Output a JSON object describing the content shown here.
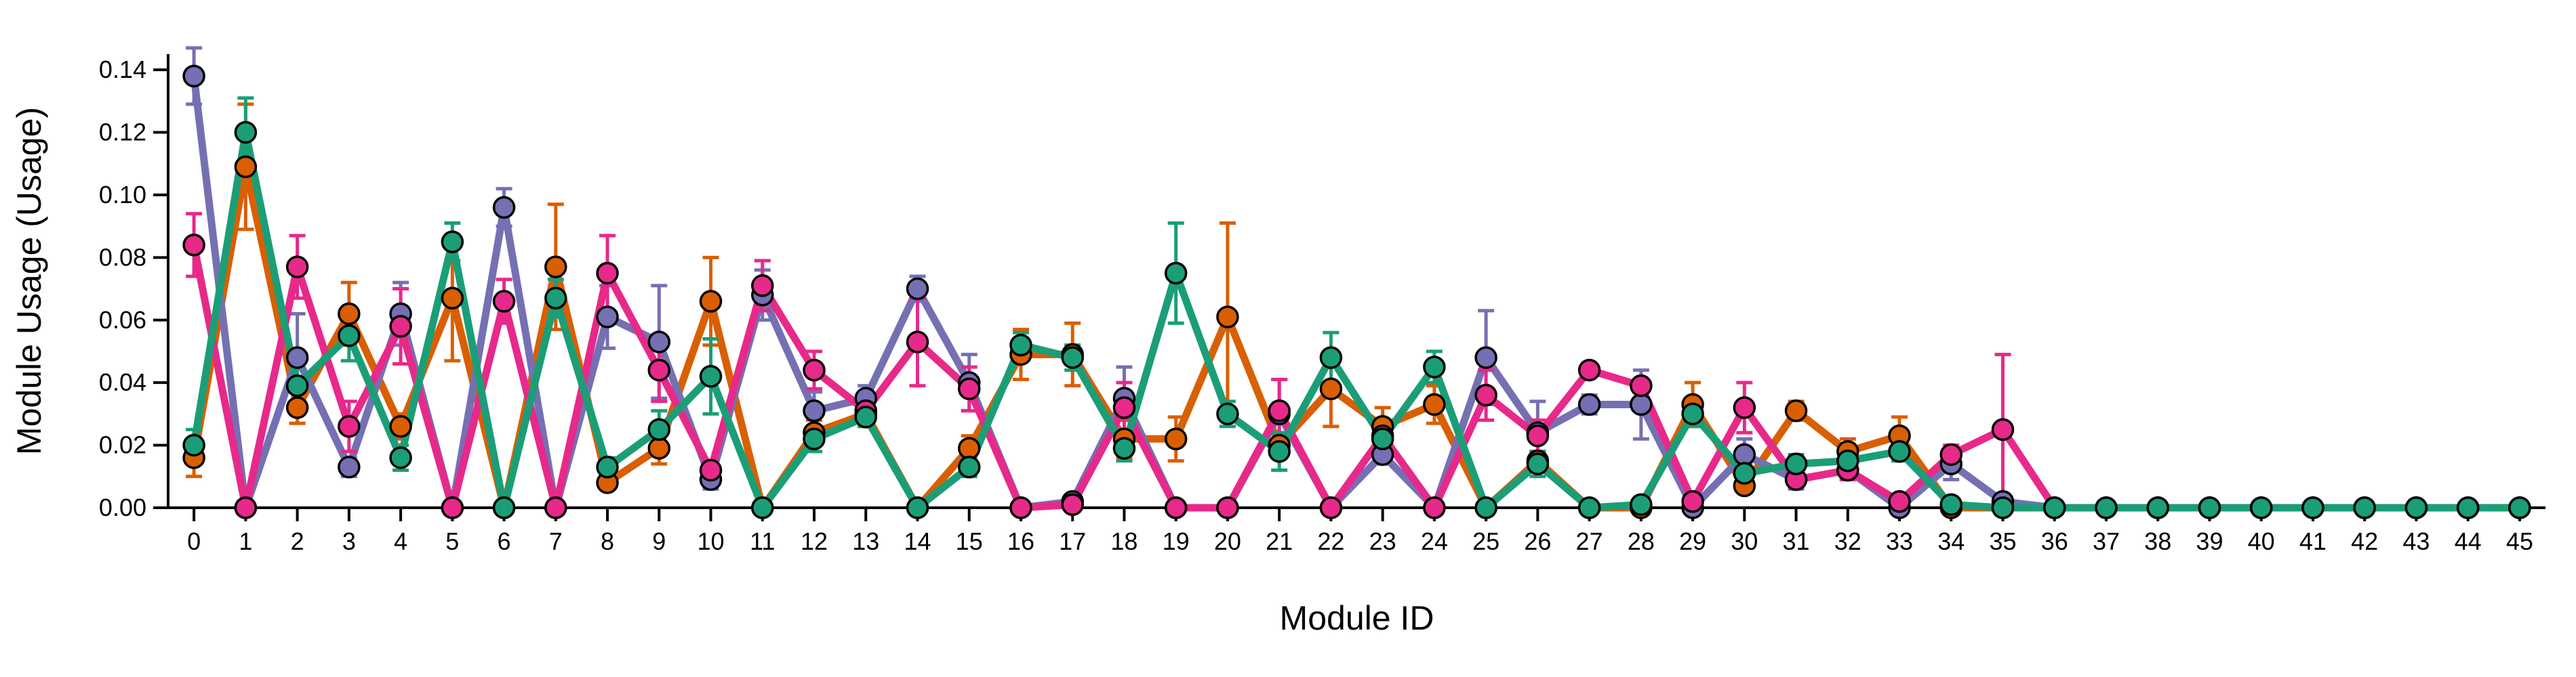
{
  "chart_data": {
    "type": "line",
    "xlabel": "Module ID",
    "ylabel": "Module Usage (Usage)",
    "ylim": [
      0,
      0.145
    ],
    "xlim": [
      -0.5,
      45.5
    ],
    "yticks": [
      "0.00",
      "0.02",
      "0.04",
      "0.06",
      "0.08",
      "0.10",
      "0.12",
      "0.14"
    ],
    "x": [
      0,
      1,
      2,
      3,
      4,
      5,
      6,
      7,
      8,
      9,
      10,
      11,
      12,
      13,
      14,
      15,
      16,
      17,
      18,
      19,
      20,
      21,
      22,
      23,
      24,
      25,
      26,
      27,
      28,
      29,
      30,
      31,
      32,
      33,
      34,
      35,
      36,
      37,
      38,
      39,
      40,
      41,
      42,
      43,
      44,
      45
    ],
    "xtick_labels": [
      "0",
      "1",
      "2",
      "3",
      "4",
      "5",
      "6",
      "7",
      "8",
      "9",
      "10",
      "11",
      "12",
      "13",
      "14",
      "15",
      "16",
      "17",
      "18",
      "19",
      "20",
      "21",
      "22",
      "23",
      "24",
      "25",
      "26",
      "27",
      "28",
      "29",
      "30",
      "31",
      "32",
      "33",
      "34",
      "35",
      "36",
      "37",
      "38",
      "39",
      "40",
      "41",
      "42",
      "43",
      "44",
      "45"
    ],
    "grid": false,
    "legend": "none",
    "series": [
      {
        "color": "#d95f02",
        "values": [
          0.016,
          0.109,
          0.032,
          0.062,
          0.026,
          0.067,
          0.0,
          0.077,
          0.008,
          0.019,
          0.066,
          0.0,
          0.024,
          0.03,
          0.0,
          0.019,
          0.049,
          0.049,
          0.022,
          0.022,
          0.061,
          0.02,
          0.038,
          0.026,
          0.033,
          0.0,
          0.015,
          0.0,
          0.0,
          0.033,
          0.007,
          0.031,
          0.018,
          0.023,
          0.0,
          0.0,
          0.0,
          0.0,
          0.0,
          0.0,
          0.0,
          0.0,
          0.0,
          0.0,
          0.0,
          0.0
        ],
        "errors": [
          0.006,
          0.02,
          0.005,
          0.01,
          0.004,
          0.02,
          0.0,
          0.02,
          0.002,
          0.005,
          0.014,
          0.0,
          0.004,
          0.004,
          0.0,
          0.004,
          0.008,
          0.01,
          0.006,
          0.007,
          0.03,
          0.004,
          0.012,
          0.006,
          0.006,
          0.0,
          0.003,
          0.0,
          0.0,
          0.007,
          0.002,
          0.003,
          0.004,
          0.006,
          0.0,
          0.0,
          0.0,
          0.0,
          0.0,
          0.0,
          0.0,
          0.0,
          0.0,
          0.0,
          0.0,
          0.0
        ]
      },
      {
        "color": "#7570b3",
        "values": [
          0.138,
          0.0,
          0.048,
          0.013,
          0.062,
          0.0,
          0.096,
          0.0,
          0.061,
          0.053,
          0.009,
          0.068,
          0.031,
          0.035,
          0.07,
          0.04,
          0.0,
          0.002,
          0.035,
          0.0,
          0.0,
          0.03,
          0.0,
          0.017,
          0.0,
          0.048,
          0.024,
          0.033,
          0.033,
          0.0,
          0.017,
          0.009,
          0.012,
          0.0,
          0.014,
          0.002,
          0.0,
          0.0,
          0.0,
          0.0,
          0.0,
          0.0,
          0.0,
          0.0,
          0.0,
          0.0
        ],
        "errors": [
          0.009,
          0.0,
          0.014,
          0.003,
          0.01,
          0.0,
          0.006,
          0.0,
          0.01,
          0.018,
          0.003,
          0.008,
          0.006,
          0.004,
          0.004,
          0.009,
          0.0,
          0.002,
          0.01,
          0.0,
          0.0,
          0.011,
          0.0,
          0.003,
          0.0,
          0.015,
          0.01,
          0.003,
          0.011,
          0.0,
          0.005,
          0.003,
          0.003,
          0.0,
          0.005,
          0.002,
          0.0,
          0.0,
          0.0,
          0.0,
          0.0,
          0.0,
          0.0,
          0.0,
          0.0,
          0.0
        ]
      },
      {
        "color": "#e7298a",
        "values": [
          0.084,
          0.0,
          0.077,
          0.026,
          0.058,
          0.0,
          0.066,
          0.0,
          0.075,
          0.044,
          0.012,
          0.071,
          0.044,
          0.031,
          0.053,
          0.038,
          0.0,
          0.001,
          0.032,
          0.0,
          0.0,
          0.031,
          0.0,
          0.023,
          0.0,
          0.036,
          0.023,
          0.044,
          0.039,
          0.002,
          0.032,
          0.009,
          0.012,
          0.002,
          0.017,
          0.025,
          0.0,
          0.0,
          0.0,
          0.0,
          0.0,
          0.0,
          0.0,
          0.0,
          0.0,
          0.0
        ],
        "errors": [
          0.01,
          0.0,
          0.01,
          0.008,
          0.012,
          0.0,
          0.007,
          0.0,
          0.012,
          0.01,
          0.003,
          0.008,
          0.006,
          0.004,
          0.014,
          0.007,
          0.0,
          0.001,
          0.008,
          0.0,
          0.0,
          0.01,
          0.0,
          0.004,
          0.0,
          0.008,
          0.005,
          0.002,
          0.002,
          0.002,
          0.008,
          0.002,
          0.003,
          0.002,
          0.003,
          0.024,
          0.0,
          0.0,
          0.0,
          0.0,
          0.0,
          0.0,
          0.0,
          0.0,
          0.0,
          0.0
        ]
      },
      {
        "color": "#1b9e77",
        "values": [
          0.02,
          0.12,
          0.039,
          0.055,
          0.016,
          0.085,
          0.0,
          0.067,
          0.013,
          0.025,
          0.042,
          0.0,
          0.022,
          0.029,
          0.0,
          0.013,
          0.052,
          0.048,
          0.019,
          0.075,
          0.03,
          0.018,
          0.048,
          0.022,
          0.045,
          0.0,
          0.014,
          0.0,
          0.001,
          0.03,
          0.011,
          0.014,
          0.015,
          0.018,
          0.001,
          0.0,
          0.0,
          0.0,
          0.0,
          0.0,
          0.0,
          0.0,
          0.0,
          0.0,
          0.0,
          0.0
        ],
        "errors": [
          0.005,
          0.011,
          0.006,
          0.008,
          0.004,
          0.006,
          0.0,
          0.006,
          0.003,
          0.006,
          0.012,
          0.0,
          0.004,
          0.003,
          0.0,
          0.003,
          0.004,
          0.004,
          0.004,
          0.016,
          0.004,
          0.006,
          0.008,
          0.004,
          0.005,
          0.0,
          0.004,
          0.0,
          0.001,
          0.004,
          0.003,
          0.003,
          0.003,
          0.003,
          0.001,
          0.0,
          0.0,
          0.0,
          0.0,
          0.0,
          0.0,
          0.0,
          0.0,
          0.0,
          0.0,
          0.0
        ]
      }
    ]
  }
}
